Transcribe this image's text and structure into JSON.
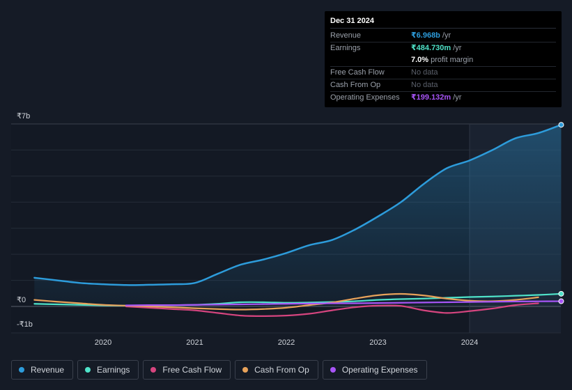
{
  "tooltip": {
    "date": "Dec 31 2024",
    "rows": {
      "revenue": {
        "label": "Revenue",
        "value": "₹6.968b",
        "unit": "/yr"
      },
      "earnings": {
        "label": "Earnings",
        "value": "₹484.730m",
        "unit": "/yr"
      },
      "margin": {
        "value": "7.0%",
        "unit": "profit margin"
      },
      "fcf": {
        "label": "Free Cash Flow",
        "value": "No data"
      },
      "cfo": {
        "label": "Cash From Op",
        "value": "No data"
      },
      "opex": {
        "label": "Operating Expenses",
        "value": "₹199.132m",
        "unit": "/yr"
      }
    }
  },
  "legend": {
    "revenue": "Revenue",
    "earnings": "Earnings",
    "fcf": "Free Cash Flow",
    "cfo": "Cash From Op",
    "opex": "Operating Expenses"
  },
  "colors": {
    "revenue": "#2d9cdb",
    "earnings": "#4fe3c9",
    "fcf": "#d6457f",
    "cfo": "#e8a25a",
    "opex": "#a855f7"
  },
  "chart_data": {
    "type": "line",
    "y_tick_labels": {
      "top": "₹7b",
      "zero": "₹0",
      "bottom": "-₹1b"
    },
    "ylim": [
      -1,
      7
    ],
    "xlim": [
      2019.2,
      2025.0
    ],
    "x_ticks": [
      2020,
      2021,
      2022,
      2023,
      2024
    ],
    "grid": true,
    "legend_position": "bottom-left",
    "highlight_start": 2024.0,
    "series": [
      {
        "key": "revenue",
        "name": "Revenue",
        "x": [
          2019.25,
          2019.5,
          2019.75,
          2020.0,
          2020.25,
          2020.5,
          2020.75,
          2021.0,
          2021.25,
          2021.5,
          2021.75,
          2022.0,
          2022.25,
          2022.5,
          2022.75,
          2023.0,
          2023.25,
          2023.5,
          2023.75,
          2024.0,
          2024.25,
          2024.5,
          2024.75,
          2025.0
        ],
        "values": [
          1.1,
          1.0,
          0.9,
          0.85,
          0.82,
          0.83,
          0.85,
          0.9,
          1.25,
          1.6,
          1.8,
          2.05,
          2.35,
          2.55,
          2.95,
          3.45,
          4.0,
          4.7,
          5.3,
          5.6,
          6.0,
          6.45,
          6.65,
          6.968
        ]
      },
      {
        "key": "earnings",
        "name": "Earnings",
        "x": [
          2019.25,
          2019.5,
          2019.75,
          2020.0,
          2020.25,
          2020.5,
          2020.75,
          2021.0,
          2021.25,
          2021.5,
          2021.75,
          2022.0,
          2022.25,
          2022.5,
          2022.75,
          2023.0,
          2023.25,
          2023.5,
          2023.75,
          2024.0,
          2024.25,
          2024.5,
          2024.75,
          2025.0
        ],
        "values": [
          0.1,
          0.08,
          0.06,
          0.04,
          0.03,
          0.04,
          0.05,
          0.06,
          0.1,
          0.16,
          0.16,
          0.14,
          0.15,
          0.17,
          0.2,
          0.25,
          0.28,
          0.3,
          0.33,
          0.36,
          0.38,
          0.41,
          0.44,
          0.485
        ]
      },
      {
        "key": "fcf",
        "name": "Free Cash Flow",
        "x": [
          2020.25,
          2020.5,
          2020.75,
          2021.0,
          2021.25,
          2021.5,
          2021.75,
          2022.0,
          2022.25,
          2022.5,
          2022.75,
          2023.0,
          2023.25,
          2023.5,
          2023.75,
          2024.0,
          2024.25,
          2024.5,
          2024.75
        ],
        "values": [
          0.0,
          -0.05,
          -0.1,
          -0.15,
          -0.25,
          -0.35,
          -0.37,
          -0.35,
          -0.28,
          -0.15,
          -0.03,
          0.03,
          0.02,
          -0.15,
          -0.25,
          -0.18,
          -0.08,
          0.05,
          0.12
        ]
      },
      {
        "key": "cfo",
        "name": "Cash From Op",
        "x": [
          2019.25,
          2019.5,
          2019.75,
          2020.0,
          2020.25,
          2020.5,
          2020.75,
          2021.0,
          2021.25,
          2021.5,
          2021.75,
          2022.0,
          2022.25,
          2022.5,
          2022.75,
          2023.0,
          2023.25,
          2023.5,
          2023.75,
          2024.0,
          2024.25,
          2024.5,
          2024.75
        ],
        "values": [
          0.25,
          0.18,
          0.12,
          0.06,
          0.03,
          0.0,
          -0.03,
          -0.07,
          -0.1,
          -0.12,
          -0.1,
          -0.05,
          0.05,
          0.15,
          0.3,
          0.43,
          0.48,
          0.42,
          0.3,
          0.22,
          0.2,
          0.25,
          0.35
        ]
      },
      {
        "key": "opex",
        "name": "Operating Expenses",
        "x": [
          2020.25,
          2020.5,
          2020.75,
          2021.0,
          2021.25,
          2021.5,
          2021.75,
          2022.0,
          2022.25,
          2022.5,
          2022.75,
          2023.0,
          2023.25,
          2023.5,
          2023.75,
          2024.0,
          2024.25,
          2024.5,
          2024.75,
          2025.0
        ],
        "values": [
          0.04,
          0.05,
          0.05,
          0.06,
          0.07,
          0.08,
          0.09,
          0.1,
          0.11,
          0.12,
          0.12,
          0.13,
          0.14,
          0.15,
          0.16,
          0.17,
          0.18,
          0.19,
          0.195,
          0.199
        ]
      }
    ]
  }
}
